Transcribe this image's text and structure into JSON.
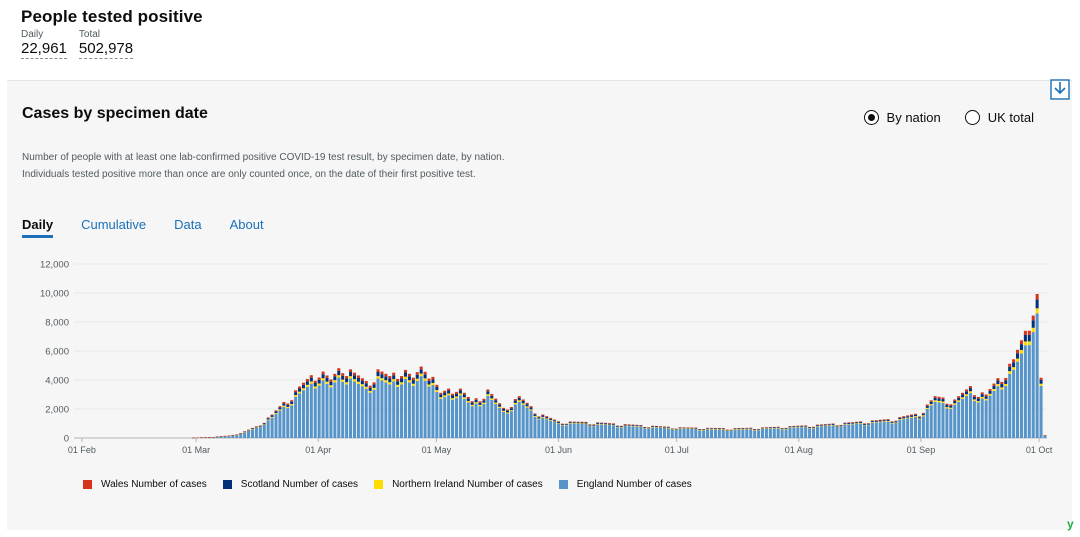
{
  "headline": {
    "title": "People tested positive",
    "daily_label": "Daily",
    "daily_value": "22,961",
    "total_label": "Total",
    "total_value": "502,978"
  },
  "card": {
    "title": "Cases by specimen date",
    "description": "Number of people with at least one lab-confirmed positive COVID-19 test result, by specimen date, by nation. Individuals tested positive more than once are only counted once, on the date of their first positive test.",
    "radio_by_nation": "By nation",
    "radio_uk_total": "UK total",
    "selected_radio": "By nation",
    "tabs": [
      {
        "label": "Daily",
        "active": true
      },
      {
        "label": "Cumulative",
        "active": false
      },
      {
        "label": "Data",
        "active": false
      },
      {
        "label": "About",
        "active": false
      }
    ],
    "download_icon": "download-icon",
    "brand_mark": "y"
  },
  "chart_data": {
    "type": "bar",
    "stacked": true,
    "title": "Cases by specimen date",
    "x_start_date": "2020-01-30",
    "x_end_date": "2020-10-03",
    "x_ticks": [
      "01 Feb",
      "01 Mar",
      "01 Apr",
      "01 May",
      "01 Jun",
      "01 Jul",
      "01 Aug",
      "01 Sep",
      "01 Oct"
    ],
    "y_ticks": [
      "12,000",
      "10,000",
      "8,000",
      "6,000",
      "4,000",
      "2,000",
      "0"
    ],
    "ylim": [
      0,
      12000
    ],
    "series": [
      {
        "name": "England Number of cases",
        "color": "#5694ca"
      },
      {
        "name": "Northern Ireland Number of cases",
        "color": "#ffdd00"
      },
      {
        "name": "Scotland Number of cases",
        "color": "#003078"
      },
      {
        "name": "Wales Number of cases",
        "color": "#d4351c"
      }
    ],
    "england_anchors": [
      [
        "2020-01-30",
        0
      ],
      [
        "2020-02-28",
        0
      ],
      [
        "2020-03-01",
        30
      ],
      [
        "2020-03-05",
        60
      ],
      [
        "2020-03-09",
        150
      ],
      [
        "2020-03-12",
        300
      ],
      [
        "2020-03-16",
        700
      ],
      [
        "2020-03-20",
        1400
      ],
      [
        "2020-03-24",
        2400
      ],
      [
        "2020-03-28",
        3300
      ],
      [
        "2020-04-01",
        4200
      ],
      [
        "2020-04-04",
        3500
      ],
      [
        "2020-04-07",
        4500
      ],
      [
        "2020-04-10",
        3900
      ],
      [
        "2020-04-13",
        3400
      ],
      [
        "2020-04-16",
        4100
      ],
      [
        "2020-04-19",
        3700
      ],
      [
        "2020-04-22",
        4300
      ],
      [
        "2020-04-25",
        3600
      ],
      [
        "2020-04-28",
        4600
      ],
      [
        "2020-05-02",
        2700
      ],
      [
        "2020-05-06",
        3200
      ],
      [
        "2020-05-10",
        2200
      ],
      [
        "2020-05-14",
        2900
      ],
      [
        "2020-05-18",
        1800
      ],
      [
        "2020-05-22",
        2500
      ],
      [
        "2020-05-27",
        1500
      ],
      [
        "2020-06-01",
        1000
      ],
      [
        "2020-06-10",
        950
      ],
      [
        "2020-06-20",
        800
      ],
      [
        "2020-07-01",
        650
      ],
      [
        "2020-07-15",
        580
      ],
      [
        "2020-07-25",
        650
      ],
      [
        "2020-08-05",
        780
      ],
      [
        "2020-08-15",
        950
      ],
      [
        "2020-08-25",
        1150
      ],
      [
        "2020-09-01",
        1500
      ],
      [
        "2020-09-05",
        2500
      ],
      [
        "2020-09-10",
        2300
      ],
      [
        "2020-09-14",
        3100
      ],
      [
        "2020-09-18",
        2600
      ],
      [
        "2020-09-22",
        3900
      ],
      [
        "2020-09-25",
        4700
      ],
      [
        "2020-09-28",
        6400
      ],
      [
        "2020-09-30",
        8500
      ],
      [
        "2020-10-01",
        8600
      ],
      [
        "2020-10-02",
        3600
      ],
      [
        "2020-10-03",
        180
      ]
    ],
    "share": {
      "scotland": 0.07,
      "northern_ireland": 0.04,
      "wales": 0.045
    }
  }
}
